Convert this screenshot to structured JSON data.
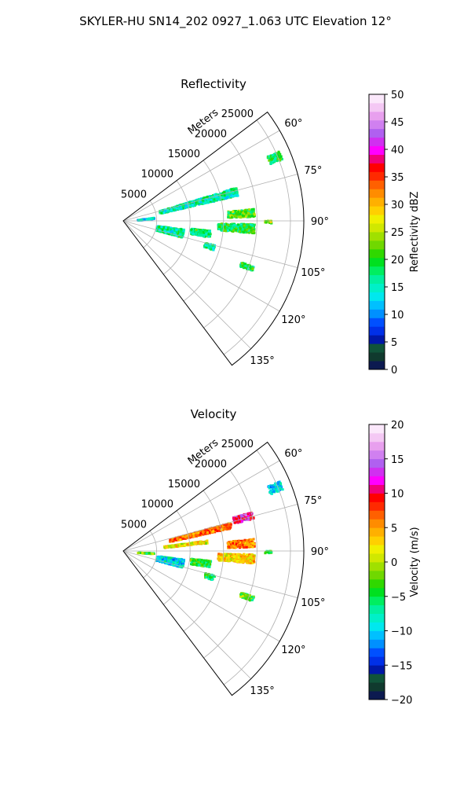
{
  "figure_title": "SKYLER-HU  SN14_202  0927_1.063 UTC Elevation 12°",
  "chart_data": [
    {
      "type": "heatmap",
      "projection": "polar-sector",
      "title": "Reflectivity",
      "radial_label": "Meters",
      "r_ticks": [
        5000,
        10000,
        15000,
        20000,
        25000
      ],
      "r_tick_labels": [
        "5000",
        "10000",
        "15000",
        "20000",
        "25000"
      ],
      "r_max": 27000,
      "theta_range_deg": [
        53,
        143
      ],
      "theta_ticks_deg": [
        60,
        75,
        90,
        105,
        120,
        135
      ],
      "theta_tick_labels": [
        "60°",
        "75°",
        "90°",
        "105°",
        "120°",
        "135°"
      ],
      "grid": true,
      "colorbar": {
        "label": "Reflectivity dBZ",
        "min": 0,
        "max": 50,
        "ticks": [
          0,
          5,
          10,
          15,
          20,
          25,
          30,
          35,
          40,
          45,
          50
        ],
        "tick_labels": [
          "0",
          "5",
          "10",
          "15",
          "20",
          "25",
          "30",
          "35",
          "40",
          "45",
          "50"
        ],
        "colors": [
          "#0c1a50",
          "#103a2e",
          "#10543a",
          "#0018a8",
          "#0030e8",
          "#0050ff",
          "#0090ff",
          "#00c0ff",
          "#00e8ee",
          "#00f0c8",
          "#00f0a0",
          "#00ee60",
          "#00e020",
          "#30d800",
          "#70d800",
          "#a0e000",
          "#d0e800",
          "#f0f000",
          "#ffd000",
          "#ffb000",
          "#ff8c00",
          "#ff6000",
          "#ff2a00",
          "#ff0000",
          "#f0007a",
          "#ff00ff",
          "#d030f0",
          "#b060f0",
          "#d080f0",
          "#e8a0ee",
          "#f4c8f4",
          "#fbe8fb"
        ]
      },
      "clusters": [
        {
          "theta": 67,
          "r_from": 23500,
          "r_to": 25500,
          "width_deg": 3.0,
          "level": 0.38
        },
        {
          "theta": 75,
          "r_from": 5500,
          "r_to": 17500,
          "width_deg": 4.0,
          "level": 0.31
        },
        {
          "theta": 86,
          "r_from": 15500,
          "r_to": 19500,
          "width_deg": 3.5,
          "level": 0.42
        },
        {
          "theta": 93,
          "r_from": 14000,
          "r_to": 19500,
          "width_deg": 4.0,
          "level": 0.38
        },
        {
          "theta": 101,
          "r_from": 5000,
          "r_to": 9000,
          "width_deg": 8.0,
          "level": 0.33
        },
        {
          "theta": 98,
          "r_from": 10000,
          "r_to": 13000,
          "width_deg": 4.5,
          "level": 0.36
        },
        {
          "theta": 106,
          "r_from": 12500,
          "r_to": 14000,
          "width_deg": 3.0,
          "level": 0.34
        },
        {
          "theta": 110,
          "r_from": 18500,
          "r_to": 20500,
          "width_deg": 2.0,
          "level": 0.36
        },
        {
          "theta": 83,
          "r_from": 2000,
          "r_to": 4500,
          "width_deg": 2.0,
          "level": 0.24
        },
        {
          "theta": 90,
          "r_from": 21000,
          "r_to": 22000,
          "width_deg": 1.0,
          "level": 0.48
        }
      ]
    },
    {
      "type": "heatmap",
      "projection": "polar-sector",
      "title": "Velocity",
      "radial_label": "Meters",
      "r_ticks": [
        5000,
        10000,
        15000,
        20000,
        25000
      ],
      "r_tick_labels": [
        "5000",
        "10000",
        "15000",
        "20000",
        "25000"
      ],
      "r_max": 27000,
      "theta_range_deg": [
        53,
        143
      ],
      "theta_ticks_deg": [
        60,
        75,
        90,
        105,
        120,
        135
      ],
      "theta_tick_labels": [
        "60°",
        "75°",
        "90°",
        "105°",
        "120°",
        "135°"
      ],
      "grid": true,
      "colorbar": {
        "label": "Velocity (m/s)",
        "min": -20,
        "max": 20,
        "ticks": [
          -20,
          -15,
          -10,
          -5,
          0,
          5,
          10,
          15,
          20
        ],
        "tick_labels": [
          "−20",
          "−15",
          "−10",
          "−5",
          "0",
          "5",
          "10",
          "15",
          "20"
        ],
        "colors": [
          "#0c1a50",
          "#103a2e",
          "#10543a",
          "#0018a8",
          "#0030e8",
          "#0050ff",
          "#0090ff",
          "#00c0ff",
          "#00e8ee",
          "#00f0c8",
          "#00f0a0",
          "#00ee60",
          "#00e020",
          "#30d800",
          "#70d800",
          "#a0e000",
          "#d0e800",
          "#f0f000",
          "#ffd000",
          "#ffb000",
          "#ff8c00",
          "#ff6000",
          "#ff2a00",
          "#ff0000",
          "#f0007a",
          "#ff00ff",
          "#d030f0",
          "#b060f0",
          "#d080f0",
          "#e8a0ee",
          "#f4c8f4",
          "#fbe8fb"
        ]
      },
      "clusters": [
        {
          "theta": 67,
          "r_from": 23500,
          "r_to": 25500,
          "width_deg": 3.0,
          "level": 0.25
        },
        {
          "theta": 74,
          "r_from": 17000,
          "r_to": 20000,
          "width_deg": 3.0,
          "level": 0.8
        },
        {
          "theta": 76,
          "r_from": 7000,
          "r_to": 16500,
          "width_deg": 3.0,
          "level": 0.66
        },
        {
          "theta": 83,
          "r_from": 6000,
          "r_to": 12500,
          "width_deg": 2.0,
          "level": 0.55
        },
        {
          "theta": 86,
          "r_from": 15500,
          "r_to": 19500,
          "width_deg": 3.5,
          "level": 0.65
        },
        {
          "theta": 93,
          "r_from": 14000,
          "r_to": 19500,
          "width_deg": 4.0,
          "level": 0.58
        },
        {
          "theta": 101,
          "r_from": 5000,
          "r_to": 9000,
          "width_deg": 8.0,
          "level": 0.27
        },
        {
          "theta": 98,
          "r_from": 10000,
          "r_to": 13000,
          "width_deg": 4.5,
          "level": 0.4
        },
        {
          "theta": 106,
          "r_from": 12500,
          "r_to": 14000,
          "width_deg": 3.0,
          "level": 0.37
        },
        {
          "theta": 110,
          "r_from": 18500,
          "r_to": 20500,
          "width_deg": 2.0,
          "level": 0.42
        },
        {
          "theta": 90,
          "r_from": 21000,
          "r_to": 22000,
          "width_deg": 1.0,
          "level": 0.4
        },
        {
          "theta": 93,
          "r_from": 2000,
          "r_to": 4500,
          "width_deg": 1.5,
          "level": 0.42
        }
      ]
    }
  ]
}
